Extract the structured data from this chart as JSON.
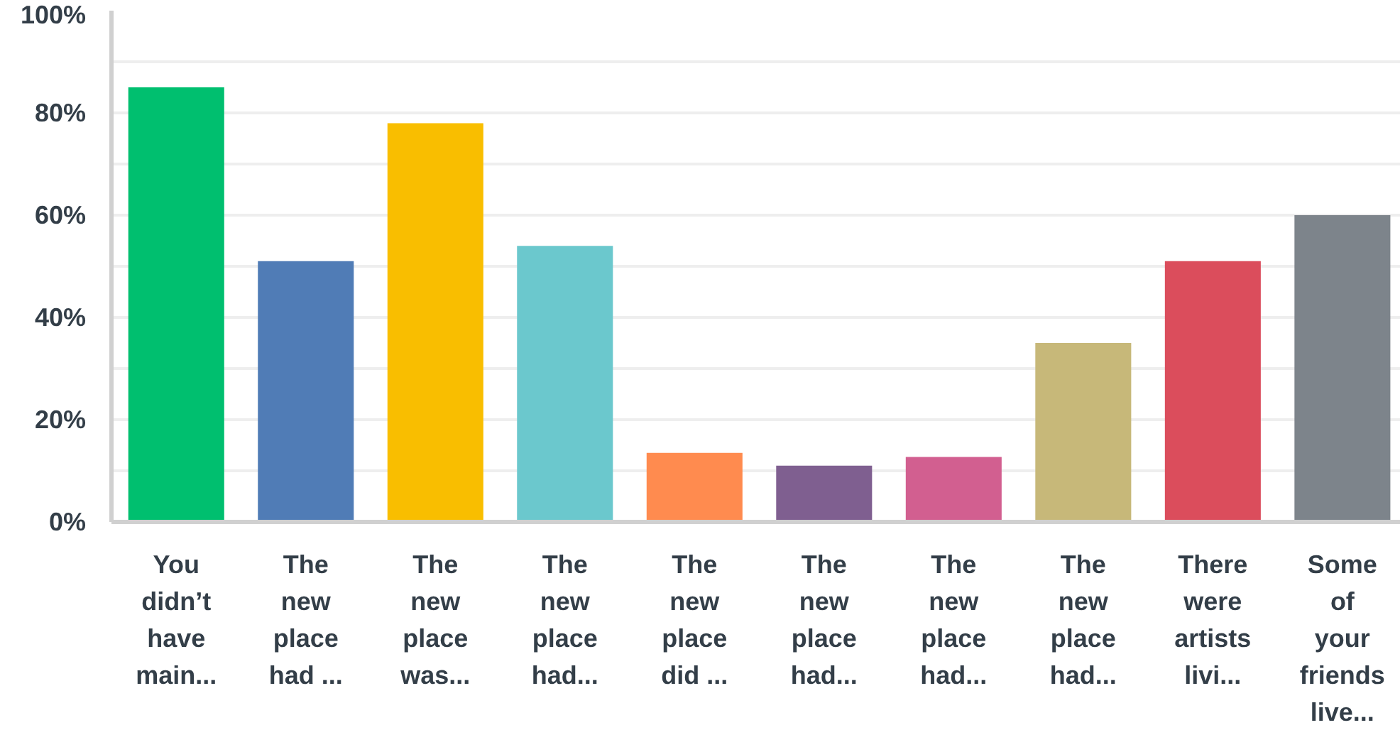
{
  "chart_data": {
    "type": "bar",
    "categories": [
      "You didn’t have main...",
      "The new place had ...",
      "The new place was...",
      "The new place had...",
      "The new place did ...",
      "The new place had...",
      "The new place had...",
      "The new place had...",
      "There were artists livi...",
      "Some of your friends live..."
    ],
    "values": [
      85,
      51,
      78,
      54,
      13.5,
      11,
      12.7,
      35,
      51,
      60
    ],
    "colors": [
      "#00bf6f",
      "#507cb6",
      "#f9be00",
      "#6bc8cd",
      "#ff8b4f",
      "#7f5f90",
      "#d25f90",
      "#c7b879",
      "#db4d5c",
      "#7d848b"
    ],
    "ylim": [
      0,
      100
    ],
    "yticks": [
      {
        "value": 0,
        "label": "0%"
      },
      {
        "value": 10,
        "label": null
      },
      {
        "value": 20,
        "label": "20%"
      },
      {
        "value": 30,
        "label": null
      },
      {
        "value": 40,
        "label": "40%"
      },
      {
        "value": 50,
        "label": null
      },
      {
        "value": 60,
        "label": "60%"
      },
      {
        "value": 70,
        "label": null
      },
      {
        "value": 80,
        "label": "80%"
      },
      {
        "value": 90,
        "label": null
      },
      {
        "value": 100,
        "label": "100%"
      }
    ],
    "grid": "y"
  }
}
